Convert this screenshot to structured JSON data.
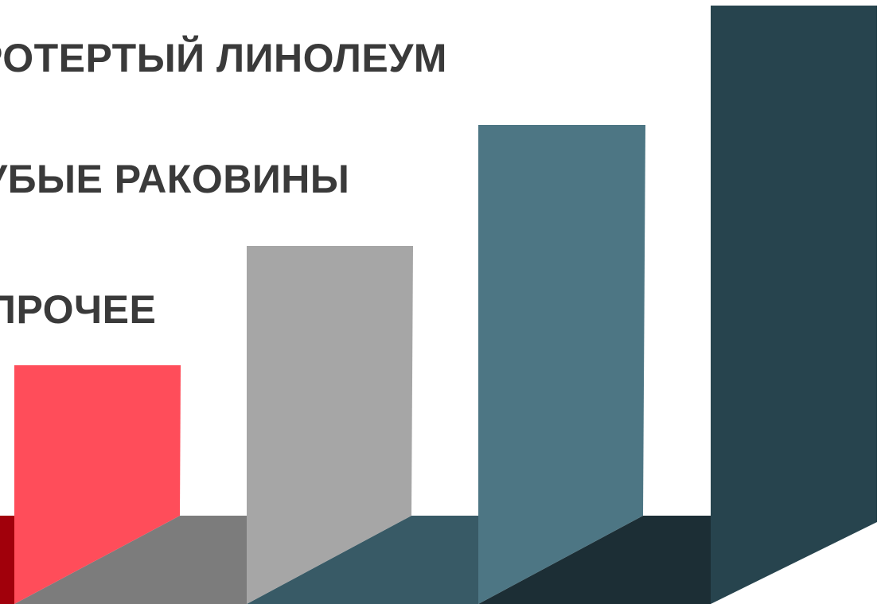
{
  "labels": [
    {
      "text": "РОТЕРТЫЙ ЛИНОЛЕУМ"
    },
    {
      "text": "УБЫЕ РАКОВИНЫ"
    },
    {
      "text": "ПРОЧЕЕ"
    }
  ],
  "colors": {
    "red_face": "#ff4d5a",
    "red_shadow": "#a1000b",
    "gray_face": "#a6a6a6",
    "gray_shadow": "#7c7c7c",
    "teal_face": "#4d7684",
    "teal_shadow": "#385a66",
    "dark_face": "#27444e",
    "dark_shadow": "#1c2e35",
    "text": "#3a3a3a"
  }
}
